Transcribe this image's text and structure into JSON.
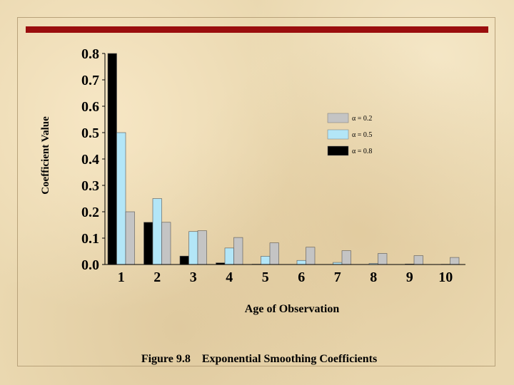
{
  "chart_data": {
    "type": "bar",
    "title": "Figure 9.8    Exponential Smoothing Coefficients",
    "xlabel": "Age of Observation",
    "ylabel": "Coefficient Value",
    "ylim": [
      0,
      0.8
    ],
    "yticks": [
      "0.0",
      "0.1",
      "0.2",
      "0.3",
      "0.4",
      "0.5",
      "0.6",
      "0.7",
      "0.8"
    ],
    "categories": [
      "1",
      "2",
      "3",
      "4",
      "5",
      "6",
      "7",
      "8",
      "9",
      "10"
    ],
    "legend_position": "top-right",
    "grid": false,
    "series": [
      {
        "name": "α = 0.8",
        "color": "#000000",
        "values": [
          0.8,
          0.16,
          0.032,
          0.0064,
          0.0013,
          0.0003,
          0.0001,
          0.0,
          0.0,
          0.0
        ]
      },
      {
        "name": "α = 0.5",
        "color": "#b3e6f7",
        "values": [
          0.5,
          0.25,
          0.125,
          0.0625,
          0.0313,
          0.0156,
          0.0078,
          0.0039,
          0.002,
          0.001
        ]
      },
      {
        "name": "α = 0.2",
        "color": "#c4c4c4",
        "values": [
          0.2,
          0.16,
          0.128,
          0.1024,
          0.0819,
          0.0655,
          0.0524,
          0.0419,
          0.0336,
          0.0268
        ]
      }
    ]
  },
  "colors": {
    "accent_bar": "#9a0e0e"
  }
}
